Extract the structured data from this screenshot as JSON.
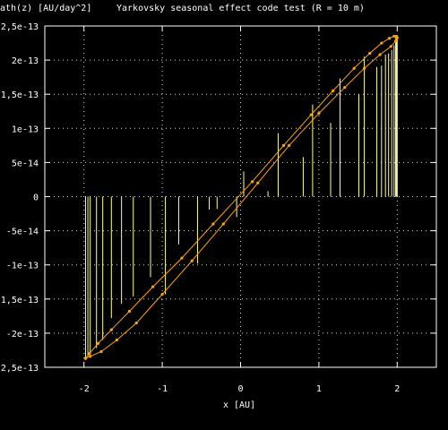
{
  "chart_data": {
    "type": "line",
    "title": "Yarkovsky seasonal effect code test (R = 10 m)",
    "ylabel": "ath(z) [AU/day^2]",
    "xlabel": "x [AU]",
    "xlim": [
      -2.5,
      2.5
    ],
    "ylim": [
      -2.5e-13,
      2.5e-13
    ],
    "x_ticks": [
      -2,
      -1,
      0,
      1,
      2
    ],
    "x_tick_labels": [
      "-2",
      "-1",
      "0",
      "1",
      "2"
    ],
    "y_ticks": [
      2.5e-13,
      2e-13,
      1.5e-13,
      1e-13,
      5e-14,
      0,
      -5e-14,
      -1e-13,
      -1.5e-13,
      -2e-13,
      -2.5e-13
    ],
    "y_tick_labels": [
      "2,5e-13",
      "2e-13",
      "1,5e-13",
      "1e-13",
      "5e-14",
      "0",
      "-5e-14",
      "-1e-13",
      "-1,5e-13",
      "-2e-13",
      "-2,5e-13"
    ],
    "grid": true,
    "colors": {
      "background": "#000000",
      "foreground": "#ffffff",
      "curve": "#ffa500",
      "impulse": "#ffff99",
      "grid": "#dddddd"
    },
    "series": [
      {
        "style": "line",
        "x": [
          -1.98,
          -1.92,
          -1.78,
          -1.58,
          -1.33,
          -1.0,
          -0.62,
          -0.22,
          0.22,
          0.62,
          1.0,
          1.33,
          1.58,
          1.78,
          1.92,
          1.98,
          1.99,
          2.0,
          1.99,
          1.96,
          1.9,
          1.8,
          1.65,
          1.45,
          1.18,
          0.9,
          0.55,
          0.15,
          -0.35,
          -0.75,
          -1.12,
          -1.42,
          -1.65,
          -1.82,
          -1.93,
          -1.98
        ],
        "y": [
          -2.37e-13,
          -2.34e-13,
          -2.27e-13,
          -2.1e-13,
          -1.85e-13,
          -1.43e-13,
          -9.4e-14,
          -4e-14,
          2e-14,
          7.5e-14,
          1.22e-13,
          1.6e-13,
          1.88e-13,
          2.08e-13,
          2.2e-13,
          2.28e-13,
          2.32e-13,
          2.33e-13,
          2.35e-13,
          2.35e-13,
          2.32e-13,
          2.25e-13,
          2.1e-13,
          1.88e-13,
          1.55e-13,
          1.2e-13,
          7.5e-14,
          2.2e-14,
          -4e-14,
          -9e-14,
          -1.32e-13,
          -1.68e-13,
          -1.95e-13,
          -2.15e-13,
          -2.3e-13,
          -2.37e-13
        ]
      },
      {
        "style": "impulses",
        "x": [
          -1.98,
          -1.95,
          -1.92,
          -1.84,
          -1.76,
          -1.65,
          -1.52,
          -1.37,
          -1.15,
          -0.96,
          -0.79,
          -0.55,
          -0.4,
          -0.3,
          -0.05,
          0.04,
          0.35,
          0.48,
          0.8,
          0.92,
          1.15,
          1.27,
          1.51,
          1.58,
          1.74,
          1.8,
          1.85,
          1.89,
          1.93,
          1.96,
          1.98,
          1.99,
          2.0
        ],
        "y": [
          -2.37e-13,
          -2.34e-13,
          -2.3e-13,
          -2.22e-13,
          -2.1e-13,
          -1.78e-13,
          -1.57e-13,
          -1.46e-13,
          -1.18e-13,
          -1.43e-13,
          -7e-14,
          -9.8e-14,
          -1.9e-14,
          -1.8e-14,
          -3e-14,
          3.7e-14,
          8e-15,
          9.3e-14,
          5.8e-14,
          1.35e-13,
          1.08e-13,
          1.73e-13,
          1.5e-13,
          2.05e-13,
          1.9e-13,
          1.92e-13,
          2.08e-13,
          2.1e-13,
          2.15e-13,
          2.22e-13,
          2.28e-13,
          2.32e-13,
          2.33e-13
        ]
      }
    ]
  }
}
